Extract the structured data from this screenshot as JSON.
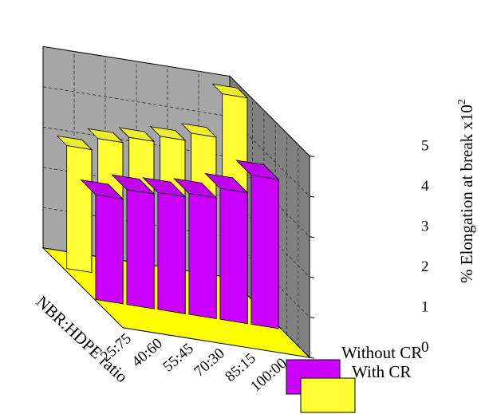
{
  "chart_data": {
    "type": "bar",
    "subtype": "3d-grouped",
    "title": "",
    "xlabel": "NBR:HDPE ratio",
    "ylabel": "% Elongation at break x10",
    "ylabel_superscript": "2",
    "categories": [
      "25:75",
      "40:60",
      "55:45",
      "70:30",
      "85:15",
      "100:00"
    ],
    "series": [
      {
        "name": "Without CR",
        "color": "#cc00ff",
        "values": [
          2.6,
          2.85,
          2.9,
          3.0,
          3.25,
          3.7
        ]
      },
      {
        "name": "With CR",
        "color": "#ffff33",
        "values": [
          3.05,
          3.35,
          3.5,
          3.65,
          3.85,
          4.95
        ]
      }
    ],
    "ylim": [
      0,
      5
    ],
    "yticks": [
      "0",
      "1",
      "2",
      "3",
      "4",
      "5"
    ],
    "grid": true,
    "legend_position": "bottom-right"
  }
}
